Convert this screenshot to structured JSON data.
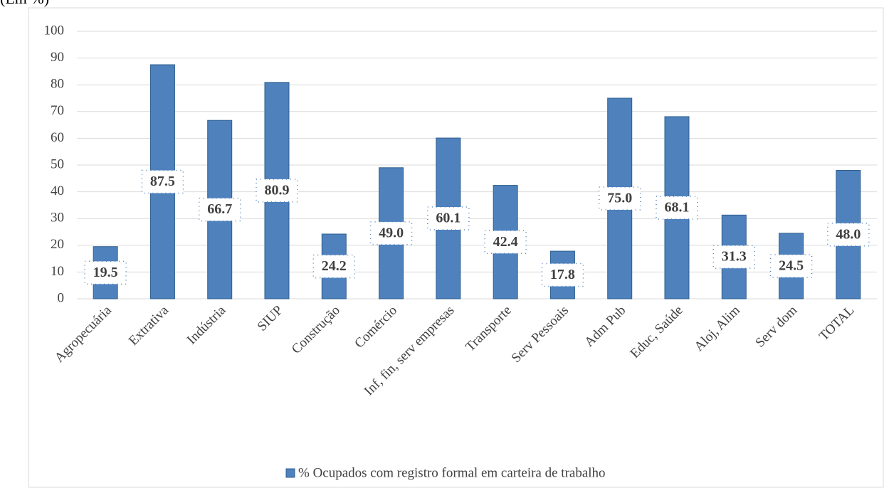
{
  "chart_data": {
    "type": "bar",
    "title": "(Em %)",
    "categories": [
      "Agropecuária",
      "Extrativa",
      "Indústria",
      "SIUP",
      "Construção",
      "Comércio",
      "Inf, fin, serv empresas",
      "Transporte",
      "Serv Pessoais",
      "Adm Pub",
      "Educ, Saúde",
      "Aloj, Alim",
      "Serv dom",
      "TOTAL"
    ],
    "series": [
      {
        "name": "% Ocupados com registro formal em carteira de trabalho",
        "color": "#4f81bd",
        "values": [
          19.5,
          87.5,
          66.7,
          80.9,
          24.2,
          49.0,
          60.1,
          42.4,
          17.8,
          75.0,
          68.1,
          31.3,
          24.5,
          48.0
        ],
        "value_labels": [
          "19.5",
          "87.5",
          "66.7",
          "80.9",
          "24.2",
          "49.0",
          "60.1",
          "42.4",
          "17.8",
          "75.0",
          "68.1",
          "31.3",
          "24.5",
          "48.0"
        ]
      }
    ],
    "ylim": [
      0,
      100
    ],
    "yticks": [
      0,
      10,
      20,
      30,
      40,
      50,
      60,
      70,
      80,
      90,
      100
    ],
    "grid": true,
    "legend": "bottom"
  }
}
